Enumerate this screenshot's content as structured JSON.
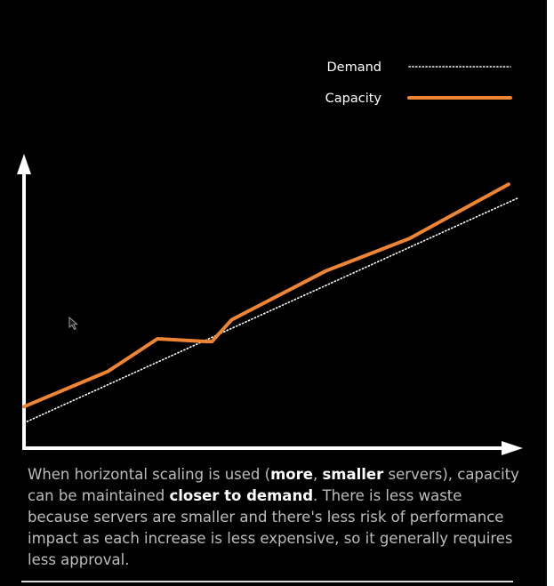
{
  "colors": {
    "background": "#000000",
    "axis": "#ffffff",
    "demand": "#ffffff",
    "capacity": "#ef8532",
    "caption_text": "#bdbdbd",
    "caption_emphasis": "#ffffff"
  },
  "chart_data": {
    "type": "line",
    "title": "",
    "xlabel": "",
    "ylabel": "",
    "xlim": [
      0,
      100
    ],
    "ylim": [
      0,
      100
    ],
    "grid": false,
    "legend": "top-right",
    "series": [
      {
        "name": "Demand",
        "style": "dotted",
        "color": "#ffffff",
        "x": [
          0,
          100
        ],
        "y": [
          9,
          92
        ]
      },
      {
        "name": "Capacity",
        "style": "solid",
        "color": "#ef8532",
        "x": [
          0,
          17,
          27,
          37,
          38,
          42,
          61,
          78,
          98
        ],
        "y": [
          15,
          28,
          40,
          39,
          39,
          47,
          65,
          77,
          97
        ]
      }
    ]
  },
  "caption": {
    "t1": "When horizontal scaling is used (",
    "b1": "more",
    "t2": ", ",
    "b2": "smaller",
    "t3": " servers), capacity can be maintained ",
    "b3": "closer to demand",
    "t4": ". There is less waste because servers are smaller and there's less risk of performance impact as each increase is less expensive, so it generally requires less approval."
  },
  "icons": {
    "cursor": "mouse-pointer-icon"
  }
}
